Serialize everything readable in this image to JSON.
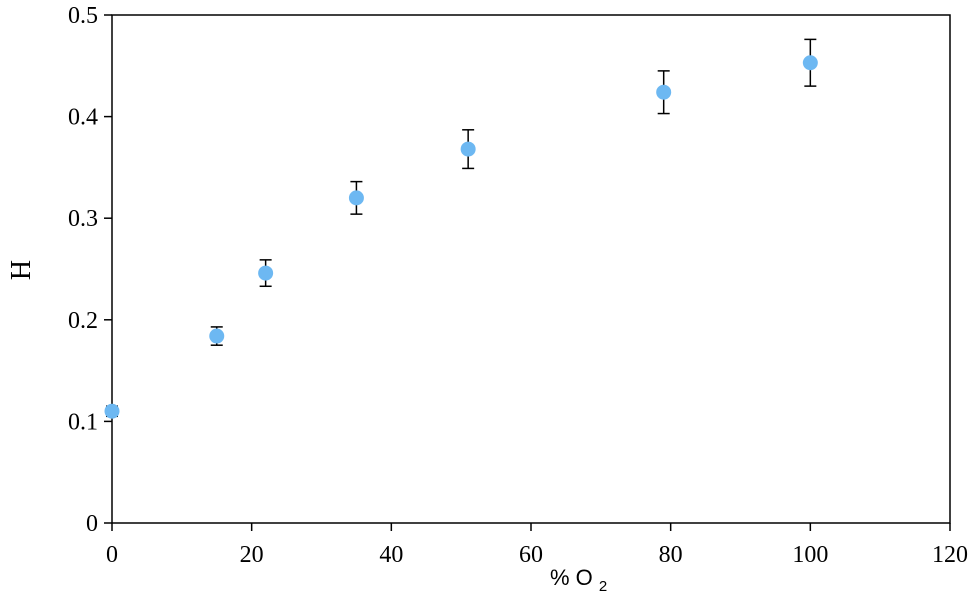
{
  "chart_data": {
    "type": "scatter",
    "title": "",
    "xlabel_main": "% O",
    "xlabel_sub": "2",
    "ylabel": "H",
    "xlim": [
      0,
      120
    ],
    "ylim": [
      0,
      0.5
    ],
    "x_ticks": [
      0,
      20,
      40,
      60,
      80,
      100,
      120
    ],
    "x_tick_labels": [
      "0",
      "20",
      "40",
      "60",
      "80",
      "100",
      "120"
    ],
    "y_ticks": [
      0,
      0.1,
      0.2,
      0.3,
      0.4,
      0.5
    ],
    "y_tick_labels": [
      "0",
      "0.1",
      "0.2",
      "0.3",
      "0.4",
      "0.5"
    ],
    "grid": false,
    "legend": "none",
    "marker_color": "#6db8f2",
    "errorbar_color": "#000000",
    "points": [
      {
        "x": 0,
        "y": 0.11,
        "err_low": 0.005,
        "err_high": 0.005
      },
      {
        "x": 15,
        "y": 0.184,
        "err_low": 0.009,
        "err_high": 0.009
      },
      {
        "x": 22,
        "y": 0.246,
        "err_low": 0.013,
        "err_high": 0.013
      },
      {
        "x": 35,
        "y": 0.32,
        "err_low": 0.016,
        "err_high": 0.016
      },
      {
        "x": 51,
        "y": 0.368,
        "err_low": 0.019,
        "err_high": 0.019
      },
      {
        "x": 79,
        "y": 0.424,
        "err_low": 0.021,
        "err_high": 0.021
      },
      {
        "x": 100,
        "y": 0.453,
        "err_low": 0.023,
        "err_high": 0.023
      }
    ]
  }
}
